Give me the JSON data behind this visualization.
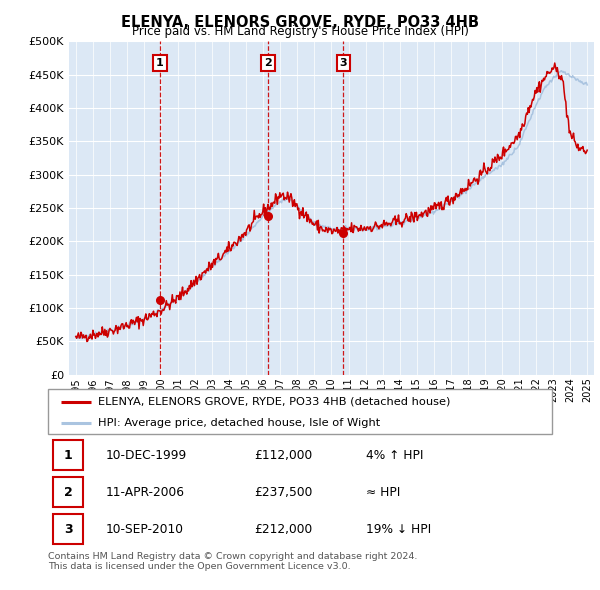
{
  "title": "ELENYA, ELENORS GROVE, RYDE, PO33 4HB",
  "subtitle": "Price paid vs. HM Land Registry's House Price Index (HPI)",
  "ytick_vals": [
    0,
    50000,
    100000,
    150000,
    200000,
    250000,
    300000,
    350000,
    400000,
    450000,
    500000
  ],
  "xlim": [
    1994.6,
    2025.4
  ],
  "ylim": [
    0,
    500000
  ],
  "sale_dates": [
    1999.94,
    2006.28,
    2010.7
  ],
  "sale_prices": [
    112000,
    237500,
    212000
  ],
  "sale_labels": [
    "1",
    "2",
    "3"
  ],
  "hpi_color": "#aac4e0",
  "price_color": "#cc0000",
  "background_color": "#dce8f5",
  "legend_entries": [
    "ELENYA, ELENORS GROVE, RYDE, PO33 4HB (detached house)",
    "HPI: Average price, detached house, Isle of Wight"
  ],
  "table_data": [
    [
      "1",
      "10-DEC-1999",
      "£112,000",
      "4% ↑ HPI"
    ],
    [
      "2",
      "11-APR-2006",
      "£237,500",
      "≈ HPI"
    ],
    [
      "3",
      "10-SEP-2010",
      "£212,000",
      "19% ↓ HPI"
    ]
  ],
  "footnote": "Contains HM Land Registry data © Crown copyright and database right 2024.\nThis data is licensed under the Open Government Licence v3.0.",
  "xtick_years": [
    1995,
    1996,
    1997,
    1998,
    1999,
    2000,
    2001,
    2002,
    2003,
    2004,
    2005,
    2006,
    2007,
    2008,
    2009,
    2010,
    2011,
    2012,
    2013,
    2014,
    2015,
    2016,
    2017,
    2018,
    2019,
    2020,
    2021,
    2022,
    2023,
    2024,
    2025
  ]
}
